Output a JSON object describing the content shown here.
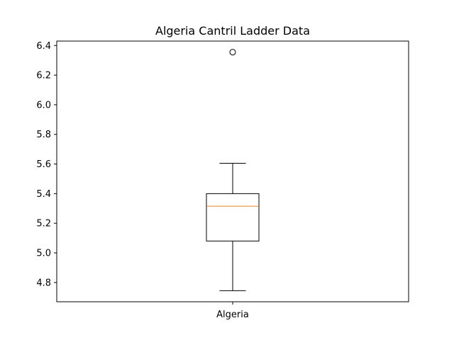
{
  "chart_data": {
    "type": "box",
    "title": "Algeria Cantril Ladder Data",
    "xlabel": "",
    "ylabel": "",
    "categories": [
      "Algeria"
    ],
    "series": [
      {
        "category": "Algeria",
        "whisker_low": 4.745,
        "q1": 5.08,
        "median": 5.315,
        "q3": 5.4,
        "whisker_high": 5.605,
        "outliers": [
          6.355
        ]
      }
    ],
    "ylim": [
      4.67,
      6.43
    ],
    "yticks": [
      "4.8",
      "5.0",
      "5.2",
      "5.4",
      "5.6",
      "5.8",
      "6.0",
      "6.2",
      "6.4"
    ],
    "grid": false,
    "colors": {
      "box": "#000000",
      "median": "#ff7f0e",
      "whisker": "#000000",
      "outlier": "#000000"
    }
  }
}
